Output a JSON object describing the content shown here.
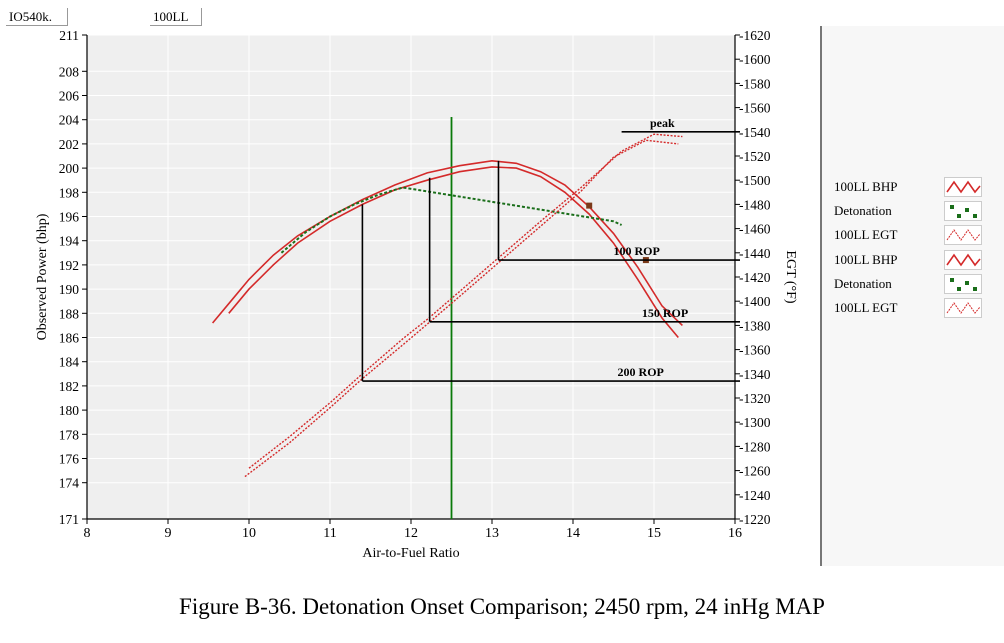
{
  "header": {
    "engine": "IO540k.",
    "fuel": "100LL"
  },
  "caption": "Figure B-36.  Detonation Onset Comparison; 2450 rpm, 24 inHg MAP",
  "colors": {
    "bhp": "#d42a2a",
    "egt": "#d42a2a",
    "detonation": "#1a6e1a",
    "marker_line": "#0a7a0a",
    "ref_line": "#000000"
  },
  "chart_data": {
    "type": "line",
    "xlabel": "Air-to-Fuel Ratio",
    "ylabel": "Observed Power (bhp)",
    "y2label": "EGT (°F)",
    "xlim": [
      8,
      16
    ],
    "ylim": [
      171,
      211
    ],
    "y2lim": [
      1220,
      1620
    ],
    "grid": true,
    "x_ticks": [
      "8",
      "9",
      "10",
      "11",
      "12",
      "13",
      "14",
      "15",
      "16"
    ],
    "y_ticks": [
      "171",
      "174",
      "176",
      "178",
      "180",
      "182",
      "184",
      "186",
      "188",
      "190",
      "192",
      "194",
      "196",
      "198",
      "200",
      "202",
      "204",
      "206",
      "208",
      "211"
    ],
    "y2_ticks": [
      "-1220",
      "-1240",
      "-1260",
      "-1280",
      "-1300",
      "-1320",
      "-1340",
      "-1360",
      "-1380",
      "-1400",
      "-1420",
      "-1440",
      "-1460",
      "-1480",
      "-1500",
      "-1520",
      "-1540",
      "-1560",
      "-1580",
      "-1600",
      "-1620"
    ],
    "legend": [
      "100LL BHP",
      "Detonation",
      "100LL EGT",
      "100LL BHP",
      "Detonation",
      "100LL EGT"
    ],
    "legend_position": "right",
    "series": [
      {
        "name": "100LL BHP",
        "axis": "left",
        "x": [
          9.55,
          9.8,
          10.0,
          10.3,
          10.6,
          11.0,
          11.4,
          11.8,
          12.2,
          12.6,
          13.0,
          13.3,
          13.6,
          13.9,
          14.2,
          14.5,
          14.8,
          15.1,
          15.35
        ],
        "y": [
          187.2,
          189.2,
          190.8,
          192.8,
          194.4,
          196.0,
          197.4,
          198.6,
          199.6,
          200.2,
          200.6,
          200.4,
          199.7,
          198.6,
          196.8,
          194.6,
          191.8,
          188.6,
          187.0
        ]
      },
      {
        "name": "100LL BHP",
        "axis": "left",
        "x": [
          9.75,
          10.0,
          10.3,
          10.6,
          11.0,
          11.4,
          11.8,
          12.2,
          12.6,
          13.0,
          13.3,
          13.6,
          13.9,
          14.2,
          14.5,
          14.8,
          15.1,
          15.3
        ],
        "y": [
          188.0,
          190.0,
          192.0,
          193.8,
          195.6,
          197.0,
          198.2,
          199.0,
          199.7,
          200.1,
          200.0,
          199.3,
          198.0,
          196.2,
          193.8,
          190.8,
          187.6,
          186.0
        ]
      },
      {
        "name": "Detonation",
        "axis": "left",
        "x": [
          10.4,
          10.7,
          11.0,
          11.3,
          11.6,
          11.9,
          14.5,
          14.6
        ],
        "y": [
          193.0,
          194.7,
          196.0,
          197.0,
          197.8,
          198.4,
          195.6,
          195.3
        ]
      },
      {
        "name": "100LL EGT",
        "axis": "right",
        "x": [
          10.0,
          10.5,
          11.0,
          11.4,
          11.9,
          12.2,
          12.6,
          13.1,
          13.6,
          14.1,
          14.6,
          15.0,
          15.35
        ],
        "y": [
          1262,
          1288,
          1316,
          1340,
          1369,
          1385,
          1408,
          1437,
          1466,
          1494,
          1524,
          1538,
          1536
        ]
      },
      {
        "name": "100LL EGT",
        "axis": "right",
        "x": [
          9.95,
          10.5,
          11.0,
          11.4,
          11.9,
          12.2,
          12.6,
          13.1,
          13.6,
          14.1,
          14.5,
          14.9,
          15.3
        ],
        "y": [
          1255,
          1283,
          1312,
          1336,
          1364,
          1381,
          1404,
          1433,
          1462,
          1491,
          1519,
          1533,
          1530
        ]
      }
    ],
    "detonation_points": [
      {
        "x": 14.2,
        "y": 1479
      },
      {
        "x": 14.9,
        "y": 1434
      }
    ],
    "green_line_x": 12.5,
    "reference_lines": [
      {
        "label": "peak",
        "x_start": 14.6,
        "y2": 1540,
        "label_x": 14.95
      },
      {
        "label": "100 ROP",
        "x_drop": 13.08,
        "y_top": 200.6,
        "y2": 1434,
        "label_x": 14.5
      },
      {
        "label": "150 ROP",
        "x_drop": 12.23,
        "y_top": 199.2,
        "y2": 1383,
        "label_x": 14.85
      },
      {
        "label": "200 ROP",
        "x_drop": 11.4,
        "y_top": 197.0,
        "y2": 1334,
        "label_x": 14.55
      }
    ]
  }
}
